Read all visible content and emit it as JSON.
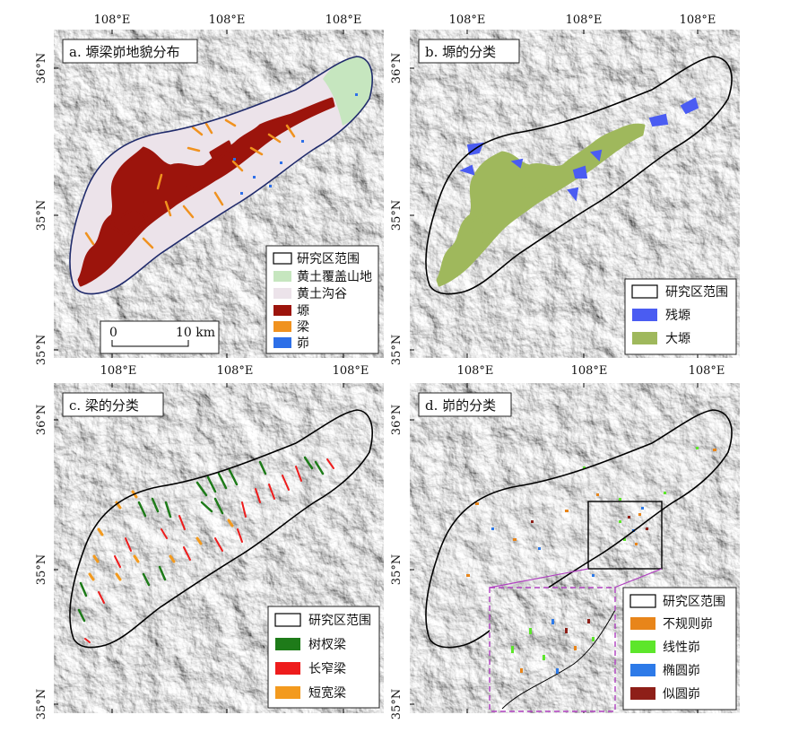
{
  "figure": {
    "colors": {
      "hillshade_light": "#ececec",
      "hillshade_dark": "#b9b9b9",
      "study_area_outline": "#000000",
      "study_area_outline_a": "#1f2a6b",
      "loess_mountain": "#c6e6bf",
      "loess_gully": "#ece3ea",
      "yuan": "#9c140c",
      "liang": "#f0921f",
      "mao": "#2d6fe8",
      "residual_yuan": "#4a5cf2",
      "large_yuan": "#9fb85c",
      "dendritic_liang": "#1e7b19",
      "long_narrow_liang": "#ee1c1c",
      "short_wide_liang": "#f39a1e",
      "irregular_mao": "#e8851a",
      "linear_mao": "#5de62b",
      "elliptical_mao": "#2d7ae8",
      "subcircular_mao": "#8e1f18",
      "inset_frame": "#b040c0"
    },
    "panels": [
      {
        "id": "a",
        "title": "a. 塬梁峁地貌分布",
        "top_ticks": [
          "108°E",
          "108°E",
          "108°E"
        ],
        "bottom_ticks": [
          "108°E",
          "108°E",
          "108°E"
        ],
        "left_ticks": [
          "36°N",
          "35°N",
          "35°N"
        ],
        "scale_bar": {
          "start": "0",
          "end": "10 km"
        },
        "legend": [
          {
            "label": "研究区范围",
            "swatch": "outline"
          },
          {
            "label": "黄土覆盖山地",
            "swatch": "loess_mountain"
          },
          {
            "label": "黄土沟谷",
            "swatch": "loess_gully"
          },
          {
            "label": "塬",
            "swatch": "yuan"
          },
          {
            "label": "梁",
            "swatch": "liang"
          },
          {
            "label": "峁",
            "swatch": "mao"
          }
        ]
      },
      {
        "id": "b",
        "title": "b. 塬的分类",
        "top_ticks": [
          "108°E",
          "108°E",
          "108°E"
        ],
        "bottom_ticks": [
          "108°E",
          "108°E",
          "108°E"
        ],
        "left_ticks": [
          "36°N",
          "35°N",
          "35°N"
        ],
        "legend": [
          {
            "label": "研究区范围",
            "swatch": "outline"
          },
          {
            "label": "残塬",
            "swatch": "residual_yuan"
          },
          {
            "label": "大塬",
            "swatch": "large_yuan"
          }
        ]
      },
      {
        "id": "c",
        "title": "c. 梁的分类",
        "left_ticks": [
          "36°N",
          "35°N",
          "35°N"
        ],
        "legend": [
          {
            "label": "研究区范围",
            "swatch": "outline"
          },
          {
            "label": "树杈梁",
            "swatch": "dendritic_liang"
          },
          {
            "label": "长窄梁",
            "swatch": "long_narrow_liang"
          },
          {
            "label": "短宽梁",
            "swatch": "short_wide_liang"
          }
        ]
      },
      {
        "id": "d",
        "title": "d. 峁的分类",
        "left_ticks": [
          "36°N",
          "35°N",
          "35°N"
        ],
        "legend": [
          {
            "label": "研究区范围",
            "swatch": "outline"
          },
          {
            "label": "不规则峁",
            "swatch": "irregular_mao"
          },
          {
            "label": "线性峁",
            "swatch": "linear_mao"
          },
          {
            "label": "椭圆峁",
            "swatch": "elliptical_mao"
          },
          {
            "label": "似圆峁",
            "swatch": "subcircular_mao"
          }
        ]
      }
    ]
  }
}
